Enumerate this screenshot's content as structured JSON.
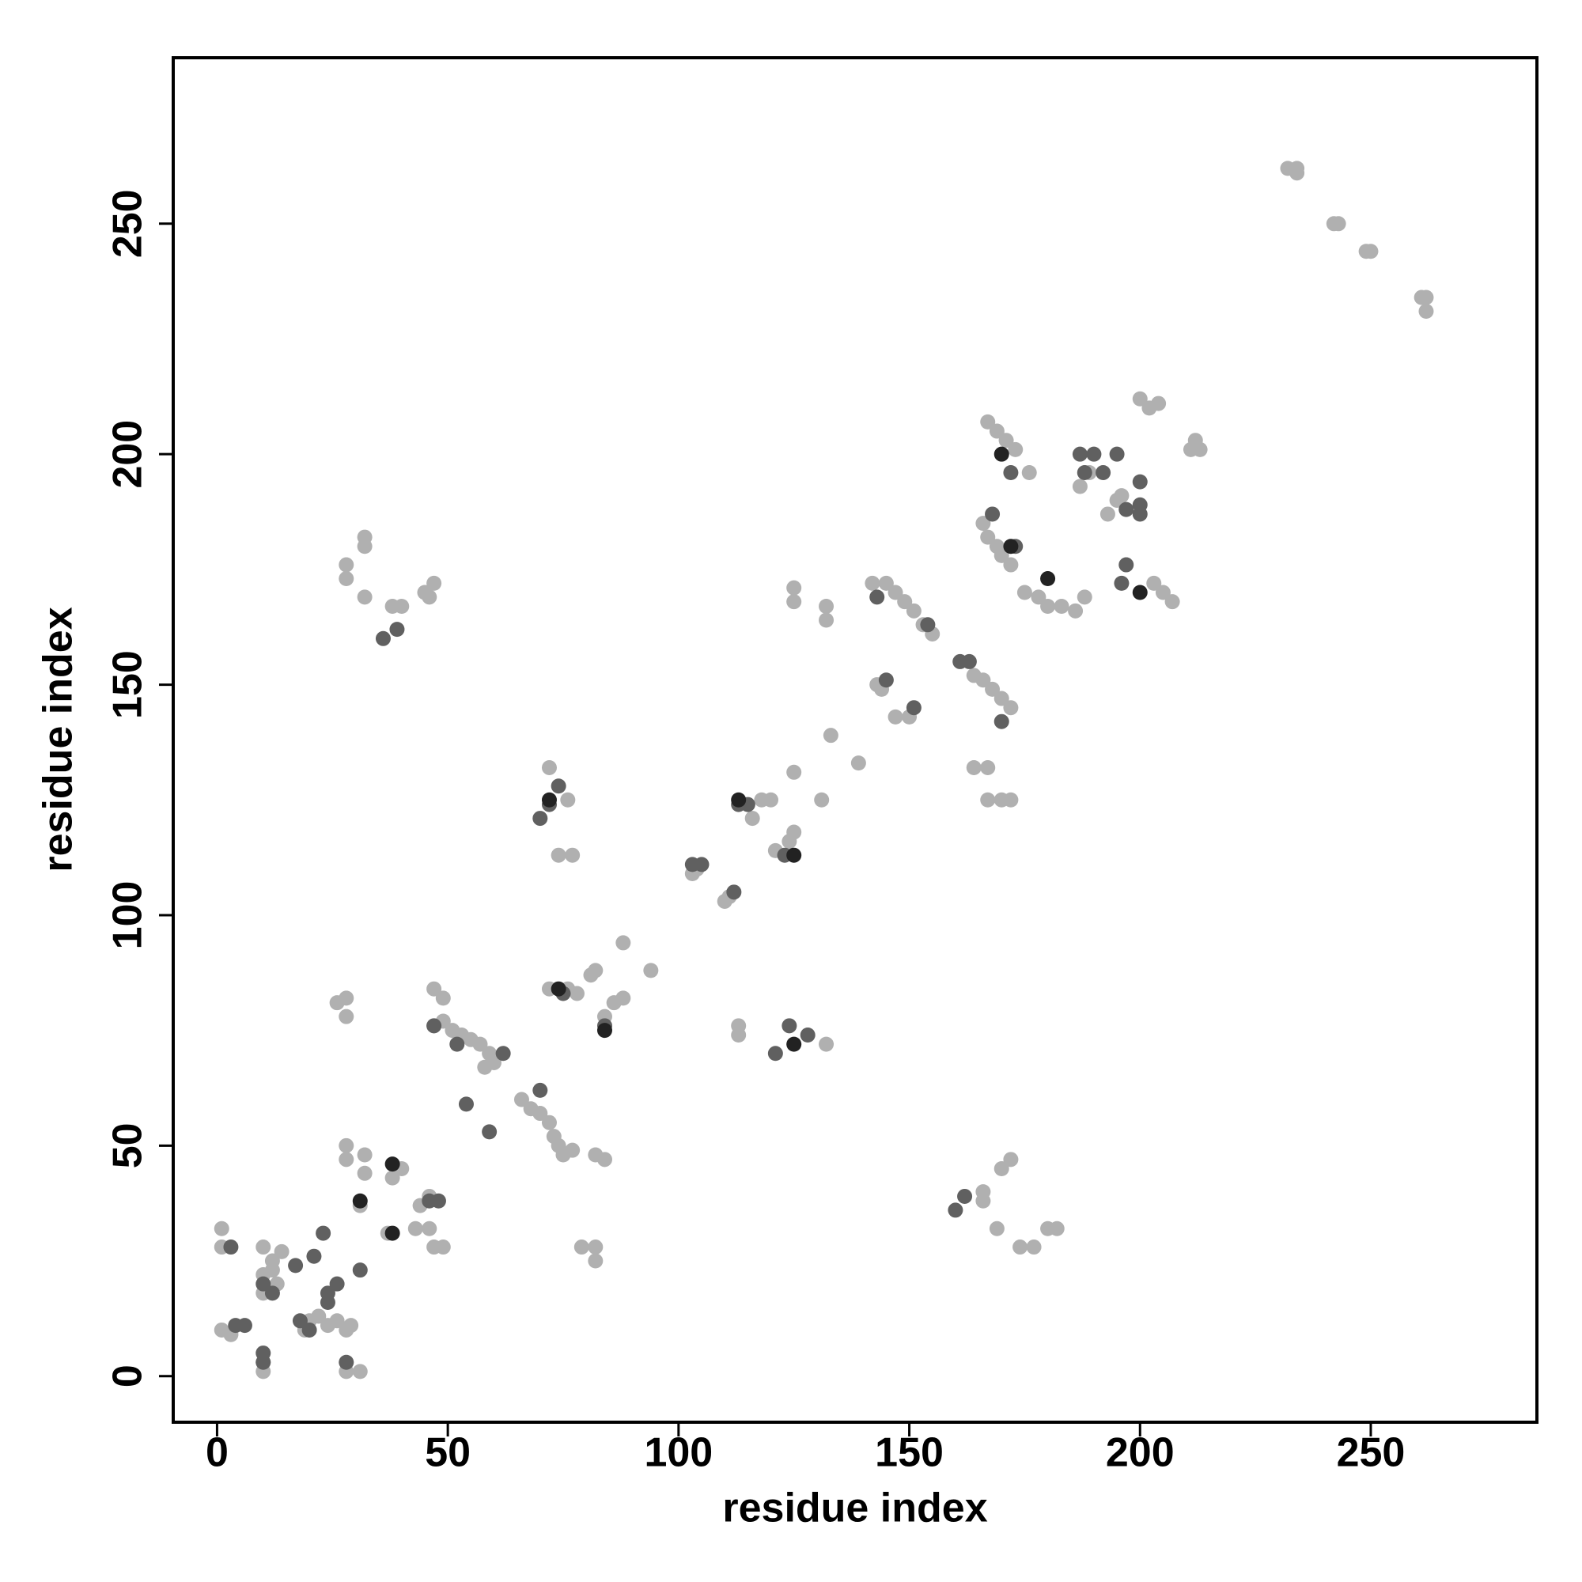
{
  "chart_data": {
    "type": "scatter",
    "xlabel": "residue index",
    "ylabel": "residue index",
    "xlim": [
      -9.5,
      286
    ],
    "ylim": [
      -10,
      286
    ],
    "xticks": [
      0,
      50,
      100,
      150,
      200,
      250
    ],
    "yticks": [
      0,
      50,
      100,
      150,
      200,
      250
    ],
    "grid": false,
    "series": [
      {
        "color": "#b0b0b0",
        "x": [
          1,
          1,
          1,
          3,
          10,
          10,
          10,
          10,
          10,
          12,
          13,
          14,
          12,
          19,
          20,
          22,
          24,
          26,
          28,
          29,
          28,
          31,
          28,
          28,
          32,
          32,
          31,
          37,
          38,
          40,
          44,
          46,
          43,
          46,
          47,
          49,
          26,
          28,
          28,
          47,
          49,
          47,
          49,
          51,
          53,
          55,
          57,
          59,
          60,
          58,
          66,
          68,
          70,
          72,
          73,
          74,
          75,
          77,
          72,
          76,
          78,
          81,
          82,
          84,
          86,
          88,
          88,
          94,
          79,
          82,
          82,
          82,
          84,
          74,
          77,
          72,
          76,
          103,
          104,
          110,
          111,
          113,
          113,
          116,
          118,
          120,
          121,
          124,
          125,
          125,
          132,
          131,
          133,
          139,
          125,
          125,
          132,
          132,
          143,
          144,
          147,
          150,
          142,
          145,
          147,
          149,
          151,
          153,
          155,
          164,
          166,
          168,
          170,
          172,
          164,
          167,
          167,
          170,
          172,
          167,
          169,
          171,
          173,
          176,
          166,
          167,
          169,
          170,
          172,
          175,
          178,
          180,
          183,
          186,
          188,
          187,
          189,
          193,
          195,
          196,
          200,
          202,
          204,
          203,
          205,
          207,
          211,
          213,
          212,
          166,
          166,
          169,
          170,
          172,
          174,
          177,
          180,
          182,
          28,
          28,
          32,
          32,
          32,
          38,
          40,
          47,
          46,
          45,
          232,
          234,
          234,
          242,
          243,
          249,
          250,
          261,
          262,
          262
        ],
        "y": [
          32,
          28,
          10,
          9,
          3,
          1,
          28,
          22,
          18,
          25,
          20,
          27,
          23,
          10,
          12,
          13,
          11,
          12,
          10,
          11,
          1,
          1,
          50,
          47,
          48,
          44,
          37,
          31,
          43,
          45,
          37,
          39,
          32,
          32,
          28,
          28,
          81,
          82,
          78,
          84,
          82,
          76,
          77,
          75,
          74,
          73,
          72,
          70,
          68,
          67,
          60,
          58,
          57,
          55,
          52,
          50,
          48,
          49,
          84,
          84,
          83,
          87,
          88,
          78,
          81,
          82,
          94,
          88,
          28,
          28,
          25,
          48,
          47,
          113,
          113,
          132,
          125,
          109,
          110,
          103,
          104,
          76,
          74,
          121,
          125,
          125,
          114,
          116,
          118,
          131,
          72,
          125,
          139,
          133,
          168,
          171,
          167,
          164,
          150,
          149,
          143,
          143,
          172,
          172,
          170,
          168,
          166,
          163,
          161,
          152,
          151,
          149,
          147,
          145,
          132,
          132,
          125,
          125,
          125,
          207,
          205,
          203,
          201,
          196,
          185,
          182,
          180,
          178,
          176,
          170,
          169,
          167,
          167,
          166,
          169,
          193,
          196,
          187,
          190,
          191,
          212,
          210,
          211,
          172,
          170,
          168,
          201,
          201,
          203,
          40,
          38,
          32,
          45,
          47,
          28,
          28,
          32,
          32,
          176,
          173,
          182,
          180,
          169,
          167,
          167,
          172,
          169,
          170,
          262,
          262,
          261,
          250,
          250,
          244,
          244,
          234,
          234,
          231
        ]
      },
      {
        "color": "#606060",
        "x": [
          3,
          4,
          6,
          10,
          10,
          10,
          12,
          17,
          18,
          20,
          21,
          23,
          24,
          24,
          26,
          28,
          31,
          36,
          39,
          46,
          48,
          47,
          52,
          54,
          59,
          62,
          70,
          72,
          74,
          70,
          75,
          84,
          103,
          105,
          112,
          113,
          115,
          121,
          124,
          128,
          123,
          143,
          145,
          151,
          161,
          163,
          160,
          162,
          168,
          170,
          173,
          172,
          187,
          190,
          188,
          192,
          195,
          197,
          196,
          197,
          200,
          200,
          200,
          154
        ],
        "y": [
          28,
          11,
          11,
          5,
          3,
          20,
          18,
          24,
          12,
          10,
          26,
          31,
          18,
          16,
          20,
          3,
          23,
          160,
          162,
          38,
          38,
          76,
          72,
          59,
          53,
          70,
          62,
          124,
          128,
          121,
          83,
          76,
          111,
          111,
          105,
          124,
          124,
          70,
          76,
          74,
          113,
          169,
          151,
          145,
          155,
          155,
          36,
          39,
          187,
          142,
          180,
          196,
          200,
          200,
          196,
          196,
          200,
          188,
          172,
          176,
          194,
          189,
          187,
          163
        ]
      },
      {
        "color": "#222222",
        "x": [
          31,
          38,
          38,
          72,
          74,
          113,
          125,
          125,
          170,
          172,
          180,
          200,
          84
        ],
        "y": [
          38,
          31,
          46,
          125,
          84,
          125,
          72,
          113,
          200,
          180,
          173,
          170,
          75
        ]
      }
    ]
  }
}
